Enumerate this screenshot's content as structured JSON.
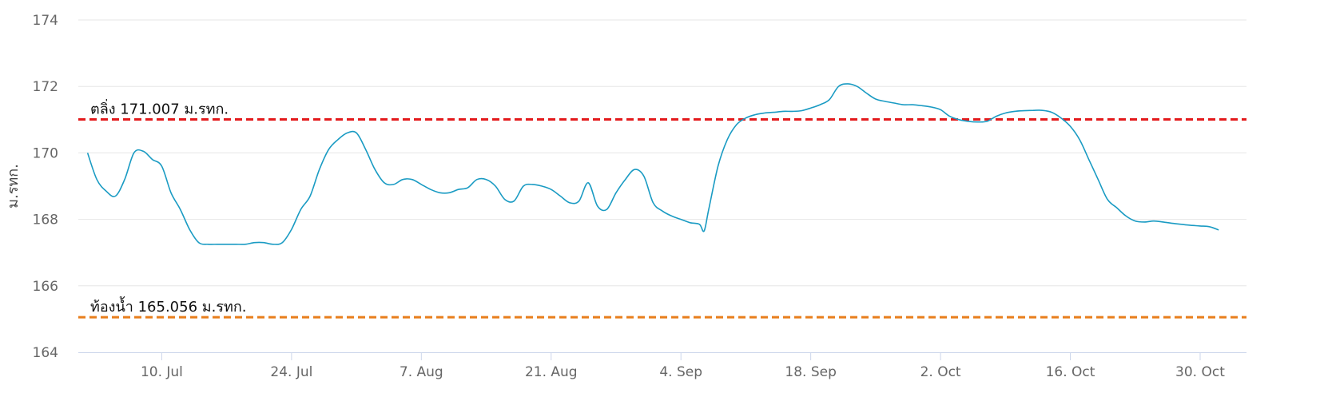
{
  "chart_data": {
    "type": "line",
    "title": "",
    "xlabel": "",
    "ylabel": "ม.รทก.",
    "ylim": [
      164,
      174
    ],
    "y_ticks": [
      164,
      166,
      168,
      170,
      172,
      174
    ],
    "x_range": [
      "2023-07-01",
      "2023-11-04"
    ],
    "x_ticks": [
      {
        "date": "2023-07-10",
        "label": "10. Jul"
      },
      {
        "date": "2023-07-24",
        "label": "24. Jul"
      },
      {
        "date": "2023-08-07",
        "label": "7. Aug"
      },
      {
        "date": "2023-08-21",
        "label": "21. Aug"
      },
      {
        "date": "2023-09-04",
        "label": "4. Sep"
      },
      {
        "date": "2023-09-18",
        "label": "18. Sep"
      },
      {
        "date": "2023-10-02",
        "label": "2. Oct"
      },
      {
        "date": "2023-10-16",
        "label": "16. Oct"
      },
      {
        "date": "2023-10-30",
        "label": "30. Oct"
      }
    ],
    "grid": true,
    "reference_lines": [
      {
        "label": "ตลิ่ง 171.007 ม.รทก.",
        "value": 171.007,
        "color": "#e31a1c",
        "style": "dashed"
      },
      {
        "label": "ท้องน้ำ 165.056 ม.รทก.",
        "value": 165.056,
        "color": "#e87e1c",
        "style": "dashed"
      }
    ],
    "series": [
      {
        "color": "#1a9bc3",
        "points": [
          [
            "2023-07-02",
            170.0
          ],
          [
            "2023-07-03",
            169.2
          ],
          [
            "2023-07-04",
            168.85
          ],
          [
            "2023-07-05",
            168.7
          ],
          [
            "2023-07-06",
            169.2
          ],
          [
            "2023-07-07",
            170.0
          ],
          [
            "2023-07-08",
            170.05
          ],
          [
            "2023-07-09",
            169.8
          ],
          [
            "2023-07-10",
            169.6
          ],
          [
            "2023-07-11",
            168.8
          ],
          [
            "2023-07-12",
            168.3
          ],
          [
            "2023-07-13",
            167.7
          ],
          [
            "2023-07-14",
            167.3
          ],
          [
            "2023-07-15",
            167.25
          ],
          [
            "2023-07-16",
            167.25
          ],
          [
            "2023-07-17",
            167.25
          ],
          [
            "2023-07-18",
            167.25
          ],
          [
            "2023-07-19",
            167.25
          ],
          [
            "2023-07-20",
            167.3
          ],
          [
            "2023-07-21",
            167.3
          ],
          [
            "2023-07-22",
            167.25
          ],
          [
            "2023-07-23",
            167.3
          ],
          [
            "2023-07-24",
            167.7
          ],
          [
            "2023-07-25",
            168.3
          ],
          [
            "2023-07-26",
            168.7
          ],
          [
            "2023-07-27",
            169.5
          ],
          [
            "2023-07-28",
            170.1
          ],
          [
            "2023-07-29",
            170.4
          ],
          [
            "2023-07-30",
            170.6
          ],
          [
            "2023-07-31",
            170.6
          ],
          [
            "2023-08-01",
            170.1
          ],
          [
            "2023-08-02",
            169.5
          ],
          [
            "2023-08-03",
            169.1
          ],
          [
            "2023-08-04",
            169.05
          ],
          [
            "2023-08-05",
            169.2
          ],
          [
            "2023-08-06",
            169.2
          ],
          [
            "2023-08-07",
            169.05
          ],
          [
            "2023-08-08",
            168.9
          ],
          [
            "2023-08-09",
            168.8
          ],
          [
            "2023-08-10",
            168.8
          ],
          [
            "2023-08-11",
            168.9
          ],
          [
            "2023-08-12",
            168.95
          ],
          [
            "2023-08-13",
            169.2
          ],
          [
            "2023-08-14",
            169.2
          ],
          [
            "2023-08-15",
            169.0
          ],
          [
            "2023-08-16",
            168.6
          ],
          [
            "2023-08-17",
            168.55
          ],
          [
            "2023-08-18",
            169.0
          ],
          [
            "2023-08-19",
            169.05
          ],
          [
            "2023-08-20",
            169.0
          ],
          [
            "2023-08-21",
            168.9
          ],
          [
            "2023-08-22",
            168.7
          ],
          [
            "2023-08-23",
            168.5
          ],
          [
            "2023-08-24",
            168.55
          ],
          [
            "2023-08-25",
            169.1
          ],
          [
            "2023-08-26",
            168.4
          ],
          [
            "2023-08-27",
            168.3
          ],
          [
            "2023-08-28",
            168.8
          ],
          [
            "2023-08-29",
            169.2
          ],
          [
            "2023-08-30",
            169.5
          ],
          [
            "2023-08-31",
            169.3
          ],
          [
            "2023-09-01",
            168.5
          ],
          [
            "2023-09-02",
            168.25
          ],
          [
            "2023-09-03",
            168.1
          ],
          [
            "2023-09-04",
            168.0
          ],
          [
            "2023-09-05",
            167.9
          ],
          [
            "2023-09-06",
            167.85
          ],
          [
            "2023-09-06 12:00",
            167.65
          ],
          [
            "2023-09-07",
            168.3
          ],
          [
            "2023-09-08",
            169.6
          ],
          [
            "2023-09-09",
            170.4
          ],
          [
            "2023-09-10",
            170.85
          ],
          [
            "2023-09-11",
            171.05
          ],
          [
            "2023-09-12",
            171.15
          ],
          [
            "2023-09-13",
            171.2
          ],
          [
            "2023-09-14",
            171.22
          ],
          [
            "2023-09-15",
            171.25
          ],
          [
            "2023-09-16",
            171.25
          ],
          [
            "2023-09-17",
            171.27
          ],
          [
            "2023-09-18",
            171.35
          ],
          [
            "2023-09-19",
            171.45
          ],
          [
            "2023-09-20",
            171.6
          ],
          [
            "2023-09-21",
            172.0
          ],
          [
            "2023-09-22",
            172.08
          ],
          [
            "2023-09-23",
            172.0
          ],
          [
            "2023-09-24",
            171.8
          ],
          [
            "2023-09-25",
            171.62
          ],
          [
            "2023-09-26",
            171.55
          ],
          [
            "2023-09-27",
            171.5
          ],
          [
            "2023-09-28",
            171.45
          ],
          [
            "2023-09-29",
            171.45
          ],
          [
            "2023-09-30",
            171.42
          ],
          [
            "2023-10-01",
            171.38
          ],
          [
            "2023-10-02",
            171.3
          ],
          [
            "2023-10-03",
            171.1
          ],
          [
            "2023-10-04",
            171.0
          ],
          [
            "2023-10-05",
            170.95
          ],
          [
            "2023-10-06",
            170.93
          ],
          [
            "2023-10-07",
            170.95
          ],
          [
            "2023-10-08",
            171.1
          ],
          [
            "2023-10-09",
            171.2
          ],
          [
            "2023-10-10",
            171.25
          ],
          [
            "2023-10-11",
            171.27
          ],
          [
            "2023-10-12",
            171.28
          ],
          [
            "2023-10-13",
            171.28
          ],
          [
            "2023-10-14",
            171.22
          ],
          [
            "2023-10-15",
            171.05
          ],
          [
            "2023-10-16",
            170.8
          ],
          [
            "2023-10-17",
            170.4
          ],
          [
            "2023-10-18",
            169.8
          ],
          [
            "2023-10-19",
            169.2
          ],
          [
            "2023-10-20",
            168.6
          ],
          [
            "2023-10-21",
            168.35
          ],
          [
            "2023-10-22",
            168.1
          ],
          [
            "2023-10-23",
            167.95
          ],
          [
            "2023-10-24",
            167.92
          ],
          [
            "2023-10-25",
            167.95
          ],
          [
            "2023-10-26",
            167.92
          ],
          [
            "2023-10-27",
            167.88
          ],
          [
            "2023-10-28",
            167.85
          ],
          [
            "2023-10-29",
            167.82
          ],
          [
            "2023-10-30",
            167.8
          ],
          [
            "2023-10-31",
            167.78
          ],
          [
            "2023-11-01",
            167.68
          ]
        ]
      }
    ]
  }
}
